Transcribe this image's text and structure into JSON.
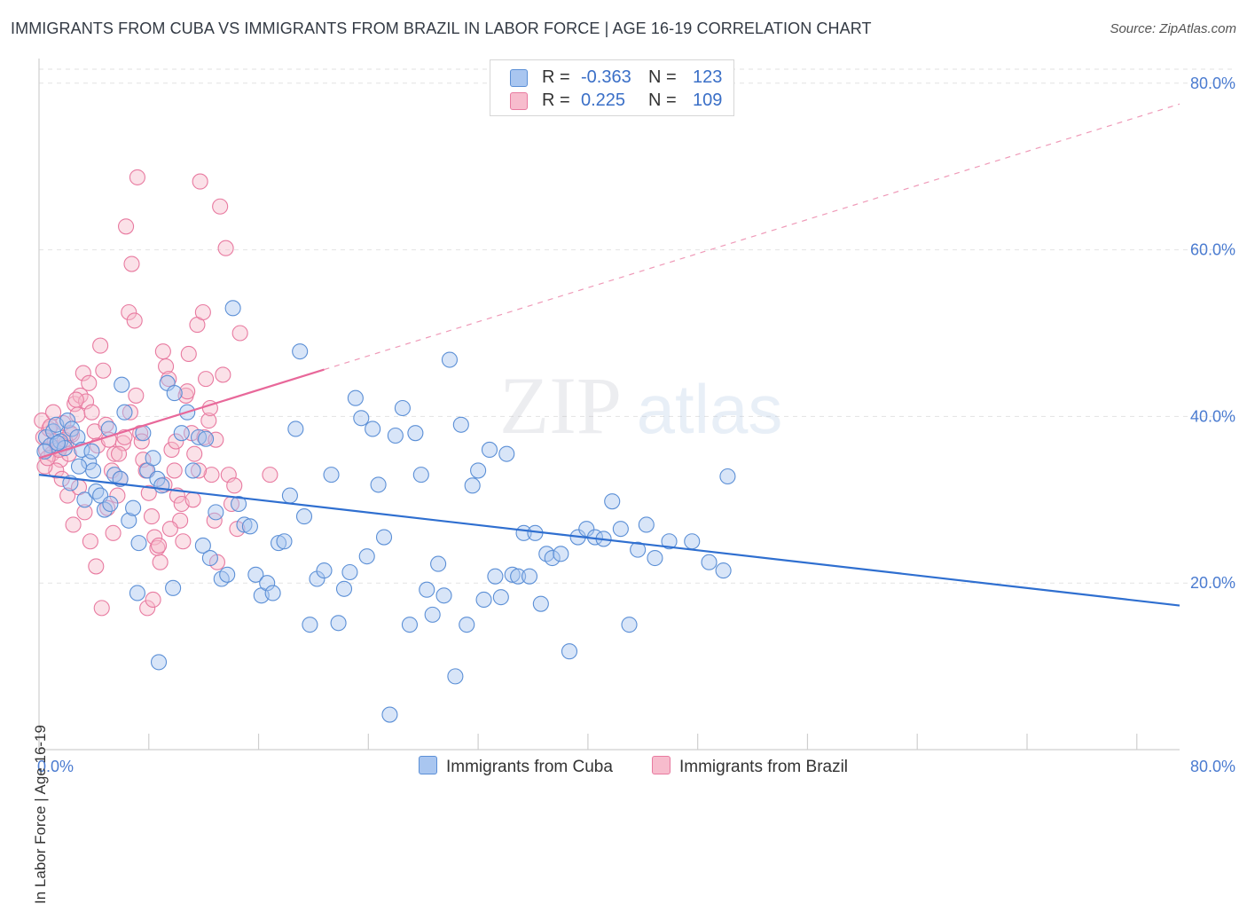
{
  "title": "IMMIGRANTS FROM CUBA VS IMMIGRANTS FROM BRAZIL IN LABOR FORCE | AGE 16-19 CORRELATION CHART",
  "source": "Source: ZipAtlas.com",
  "watermark": {
    "zip": "ZIP",
    "atlas": "atlas"
  },
  "legend": {
    "rows": [
      {
        "r_label": "R =",
        "r_value": "-0.363",
        "n_label": "N =",
        "n_value": "123",
        "color": "#a9c6f0",
        "border": "#5b8fd6"
      },
      {
        "r_label": "R =",
        "r_value": "0.225",
        "n_label": "N =",
        "n_value": "109",
        "color": "#f7bccd",
        "border": "#e87aa0"
      }
    ]
  },
  "bottom_legend": [
    {
      "label": "Immigrants from Cuba",
      "color": "#a9c6f0",
      "border": "#5b8fd6"
    },
    {
      "label": "Immigrants from Brazil",
      "color": "#f7bccd",
      "border": "#e87aa0"
    }
  ],
  "chart_data": {
    "type": "scatter",
    "title": "IMMIGRANTS FROM CUBA VS IMMIGRANTS FROM BRAZIL IN LABOR FORCE | AGE 16-19 CORRELATION CHART",
    "xlabel": "",
    "ylabel": "In Labor Force | Age 16-19",
    "xlim": [
      0,
      80
    ],
    "ylim": [
      0,
      82
    ],
    "x_tick_labels": [
      "0.0%",
      "80.0%"
    ],
    "y_tick_labels": [
      "20.0%",
      "40.0%",
      "60.0%",
      "80.0%"
    ],
    "y_ticks": [
      20,
      40,
      60,
      80
    ],
    "x_ticks": [
      0,
      7.7,
      15.4,
      23.1,
      30.8,
      38.5,
      46.2,
      53.9,
      61.6,
      69.3,
      77
    ],
    "grid": true,
    "legend_position": "top-center",
    "series": [
      {
        "name": "Immigrants from Cuba",
        "color": "#5b8fd6",
        "trend": {
          "x": [
            0,
            80
          ],
          "y": [
            33.0,
            17.3
          ],
          "style": "solid"
        },
        "points": [
          [
            0.5,
            37.5
          ],
          [
            0.8,
            36.5
          ],
          [
            1.0,
            38.2
          ],
          [
            1.2,
            39.0
          ],
          [
            1.5,
            37.0
          ],
          [
            1.8,
            36.2
          ],
          [
            2.0,
            39.5
          ],
          [
            2.3,
            38.5
          ],
          [
            2.7,
            37.5
          ],
          [
            3.0,
            36.0
          ],
          [
            3.2,
            30.0
          ],
          [
            3.5,
            34.5
          ],
          [
            3.8,
            33.5
          ],
          [
            4.0,
            31.0
          ],
          [
            4.3,
            30.5
          ],
          [
            4.6,
            28.8
          ],
          [
            5.0,
            29.5
          ],
          [
            5.3,
            33.0
          ],
          [
            5.7,
            32.5
          ],
          [
            6.0,
            40.5
          ],
          [
            6.3,
            27.5
          ],
          [
            6.6,
            29.0
          ],
          [
            7.0,
            24.8
          ],
          [
            7.3,
            38.0
          ],
          [
            7.6,
            33.5
          ],
          [
            8.0,
            35.0
          ],
          [
            8.3,
            32.5
          ],
          [
            8.6,
            31.7
          ],
          [
            9.0,
            44.0
          ],
          [
            9.5,
            42.8
          ],
          [
            10.0,
            38.0
          ],
          [
            10.4,
            40.5
          ],
          [
            10.8,
            33.5
          ],
          [
            11.2,
            37.5
          ],
          [
            11.5,
            24.5
          ],
          [
            12.0,
            23.0
          ],
          [
            12.4,
            28.5
          ],
          [
            12.8,
            20.5
          ],
          [
            13.2,
            21.0
          ],
          [
            13.6,
            53.0
          ],
          [
            14.0,
            29.5
          ],
          [
            14.4,
            27.0
          ],
          [
            14.8,
            26.8
          ],
          [
            15.2,
            21.0
          ],
          [
            15.6,
            18.5
          ],
          [
            16.0,
            20.0
          ],
          [
            16.4,
            18.8
          ],
          [
            16.8,
            24.8
          ],
          [
            17.2,
            25.0
          ],
          [
            17.6,
            30.5
          ],
          [
            18.0,
            38.5
          ],
          [
            18.3,
            47.8
          ],
          [
            18.6,
            28.0
          ],
          [
            19.0,
            15.0
          ],
          [
            19.5,
            20.5
          ],
          [
            20.0,
            21.5
          ],
          [
            20.5,
            33.0
          ],
          [
            21.0,
            15.2
          ],
          [
            21.4,
            19.3
          ],
          [
            21.8,
            21.3
          ],
          [
            22.2,
            42.2
          ],
          [
            22.6,
            39.8
          ],
          [
            23.0,
            23.2
          ],
          [
            23.4,
            38.5
          ],
          [
            23.8,
            31.8
          ],
          [
            24.2,
            25.5
          ],
          [
            24.6,
            4.2
          ],
          [
            25.0,
            37.7
          ],
          [
            25.5,
            41.0
          ],
          [
            26.0,
            15.0
          ],
          [
            26.4,
            38.0
          ],
          [
            26.8,
            33.0
          ],
          [
            27.2,
            19.2
          ],
          [
            27.6,
            16.2
          ],
          [
            28.0,
            22.3
          ],
          [
            28.4,
            18.5
          ],
          [
            28.8,
            46.8
          ],
          [
            29.2,
            8.8
          ],
          [
            29.6,
            39.0
          ],
          [
            30.0,
            15.0
          ],
          [
            30.4,
            31.7
          ],
          [
            30.8,
            33.5
          ],
          [
            31.2,
            18.0
          ],
          [
            31.6,
            36.0
          ],
          [
            32.0,
            20.8
          ],
          [
            32.4,
            18.3
          ],
          [
            32.8,
            35.5
          ],
          [
            33.2,
            21.0
          ],
          [
            33.6,
            20.8
          ],
          [
            34.0,
            26.0
          ],
          [
            34.4,
            20.8
          ],
          [
            34.8,
            26.0
          ],
          [
            35.2,
            17.5
          ],
          [
            35.6,
            23.5
          ],
          [
            36.0,
            23.0
          ],
          [
            36.6,
            23.5
          ],
          [
            37.2,
            11.8
          ],
          [
            37.8,
            25.5
          ],
          [
            38.4,
            26.5
          ],
          [
            39.0,
            25.5
          ],
          [
            39.6,
            25.3
          ],
          [
            40.2,
            29.8
          ],
          [
            40.8,
            26.5
          ],
          [
            41.4,
            15.0
          ],
          [
            42.0,
            24.0
          ],
          [
            42.6,
            27.0
          ],
          [
            43.2,
            23.0
          ],
          [
            44.2,
            25.0
          ],
          [
            45.8,
            25.0
          ],
          [
            47.0,
            22.5
          ],
          [
            48.0,
            21.5
          ],
          [
            48.3,
            32.8
          ],
          [
            5.8,
            43.8
          ],
          [
            11.7,
            37.3
          ],
          [
            9.4,
            19.4
          ],
          [
            6.9,
            18.8
          ],
          [
            8.4,
            10.5
          ],
          [
            2.2,
            32.0
          ],
          [
            3.7,
            35.8
          ],
          [
            4.9,
            38.5
          ],
          [
            1.3,
            36.8
          ],
          [
            0.4,
            35.8
          ],
          [
            2.8,
            34.0
          ]
        ]
      },
      {
        "name": "Immigrants from Brazil",
        "color": "#e87aa0",
        "trend": {
          "x": [
            0,
            80
          ],
          "y": [
            35.0,
            77.5
          ],
          "style": "solid-then-dashed",
          "solid_until_x": 20
        },
        "points": [
          [
            0.3,
            37.5
          ],
          [
            0.5,
            36.0
          ],
          [
            0.7,
            38.5
          ],
          [
            0.9,
            35.5
          ],
          [
            1.1,
            37.0
          ],
          [
            1.3,
            36.2
          ],
          [
            1.5,
            34.8
          ],
          [
            1.7,
            39.2
          ],
          [
            1.9,
            36.8
          ],
          [
            2.1,
            35.5
          ],
          [
            2.3,
            37.8
          ],
          [
            2.5,
            41.5
          ],
          [
            2.7,
            40.2
          ],
          [
            2.9,
            42.5
          ],
          [
            3.1,
            45.2
          ],
          [
            3.3,
            41.8
          ],
          [
            3.5,
            44.0
          ],
          [
            3.7,
            40.5
          ],
          [
            3.9,
            38.2
          ],
          [
            4.1,
            36.5
          ],
          [
            4.3,
            48.5
          ],
          [
            4.5,
            45.5
          ],
          [
            4.7,
            39.0
          ],
          [
            4.9,
            37.2
          ],
          [
            5.1,
            33.5
          ],
          [
            5.3,
            35.5
          ],
          [
            5.5,
            30.5
          ],
          [
            5.7,
            32.5
          ],
          [
            5.9,
            36.8
          ],
          [
            6.1,
            62.8
          ],
          [
            6.3,
            52.5
          ],
          [
            6.5,
            58.3
          ],
          [
            6.7,
            51.5
          ],
          [
            6.9,
            68.7
          ],
          [
            7.1,
            38.0
          ],
          [
            7.3,
            34.8
          ],
          [
            7.5,
            33.5
          ],
          [
            7.7,
            30.8
          ],
          [
            7.9,
            28.0
          ],
          [
            8.1,
            25.5
          ],
          [
            8.3,
            24.2
          ],
          [
            8.5,
            22.5
          ],
          [
            8.7,
            47.8
          ],
          [
            8.9,
            46.0
          ],
          [
            9.1,
            44.5
          ],
          [
            9.3,
            36.0
          ],
          [
            9.5,
            33.5
          ],
          [
            9.7,
            30.5
          ],
          [
            9.9,
            27.5
          ],
          [
            10.1,
            25.0
          ],
          [
            10.3,
            42.5
          ],
          [
            10.5,
            47.5
          ],
          [
            10.7,
            38.0
          ],
          [
            10.9,
            35.5
          ],
          [
            11.1,
            51.0
          ],
          [
            11.3,
            68.2
          ],
          [
            11.5,
            52.5
          ],
          [
            11.7,
            44.5
          ],
          [
            11.9,
            39.5
          ],
          [
            12.1,
            33.0
          ],
          [
            12.3,
            27.5
          ],
          [
            12.5,
            22.5
          ],
          [
            12.7,
            65.2
          ],
          [
            12.9,
            45.0
          ],
          [
            13.1,
            60.2
          ],
          [
            13.3,
            33.0
          ],
          [
            13.5,
            29.5
          ],
          [
            13.7,
            31.7
          ],
          [
            13.9,
            26.5
          ],
          [
            14.1,
            50.0
          ],
          [
            16.2,
            33.0
          ],
          [
            1.2,
            33.5
          ],
          [
            1.6,
            32.5
          ],
          [
            2.0,
            30.5
          ],
          [
            2.4,
            27.0
          ],
          [
            2.8,
            31.5
          ],
          [
            3.2,
            28.5
          ],
          [
            3.6,
            25.0
          ],
          [
            4.0,
            22.0
          ],
          [
            4.4,
            17.0
          ],
          [
            4.8,
            29.0
          ],
          [
            5.2,
            26.0
          ],
          [
            5.6,
            35.5
          ],
          [
            6.0,
            37.5
          ],
          [
            6.4,
            40.5
          ],
          [
            6.8,
            42.5
          ],
          [
            7.2,
            37.0
          ],
          [
            7.6,
            17.0
          ],
          [
            8.0,
            18.0
          ],
          [
            8.4,
            24.5
          ],
          [
            8.8,
            31.8
          ],
          [
            9.2,
            26.5
          ],
          [
            9.6,
            37.0
          ],
          [
            10.0,
            29.5
          ],
          [
            10.4,
            43.0
          ],
          [
            10.8,
            30.0
          ],
          [
            11.2,
            33.5
          ],
          [
            11.6,
            37.5
          ],
          [
            12.0,
            41.0
          ],
          [
            12.4,
            37.2
          ],
          [
            0.2,
            39.5
          ],
          [
            0.4,
            34.0
          ],
          [
            0.6,
            35.0
          ],
          [
            0.8,
            38.8
          ],
          [
            1.0,
            40.5
          ],
          [
            1.4,
            36.0
          ],
          [
            1.8,
            37.2
          ],
          [
            2.2,
            38.0
          ],
          [
            2.6,
            42.0
          ]
        ]
      }
    ]
  }
}
